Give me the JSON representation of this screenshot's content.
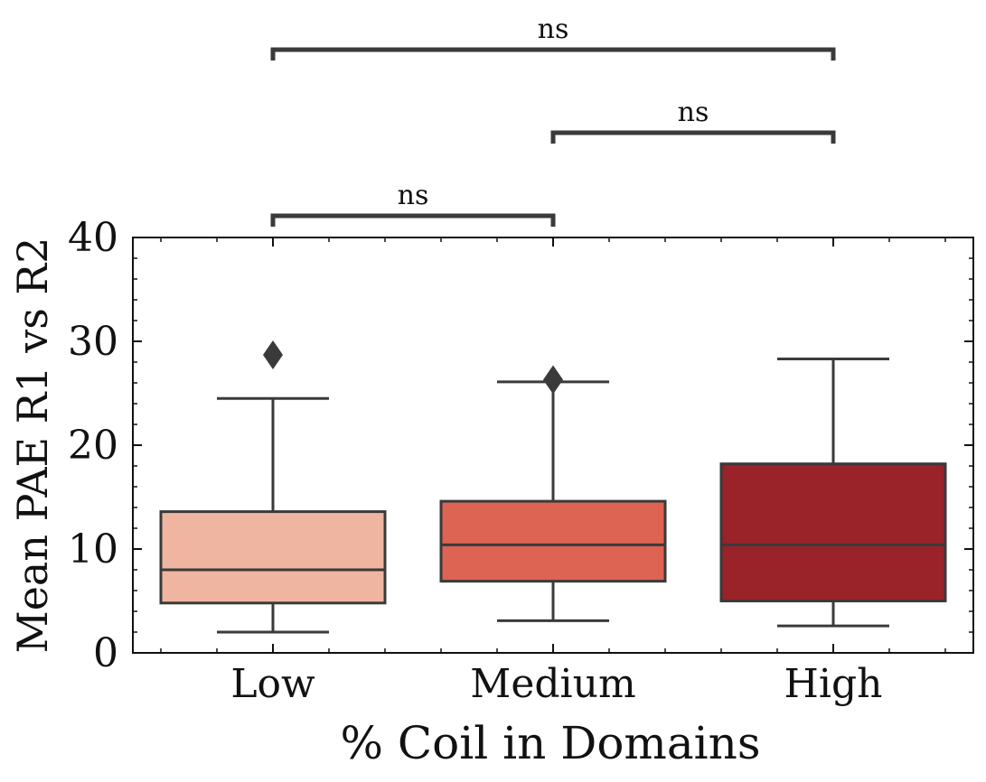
{
  "chart_data": {
    "type": "box",
    "title": "",
    "xlabel": "% Coil in Domains",
    "ylabel": "Mean PAE R1 vs R2",
    "ylim": [
      0,
      40
    ],
    "yticks": [
      0,
      10,
      20,
      30,
      40
    ],
    "categories": [
      "Low",
      "Medium",
      "High"
    ],
    "boxes": [
      {
        "category": "Low",
        "whisker_low": 2.0,
        "q1": 4.8,
        "median": 8.0,
        "q3": 13.6,
        "whisker_high": 24.5,
        "outliers": [
          28.7
        ],
        "color": "#f0b5a1"
      },
      {
        "category": "Medium",
        "whisker_low": 3.1,
        "q1": 6.9,
        "median": 10.4,
        "q3": 14.6,
        "whisker_high": 26.1,
        "outliers": [
          26.3
        ],
        "color": "#dd6352"
      },
      {
        "category": "High",
        "whisker_low": 2.6,
        "q1": 5.0,
        "median": 10.4,
        "q3": 18.2,
        "whisker_high": 28.3,
        "outliers": [],
        "color": "#9a2229"
      }
    ],
    "annotations": [
      {
        "from": "Low",
        "to": "Medium",
        "label": "ns"
      },
      {
        "from": "Medium",
        "to": "High",
        "label": "ns"
      },
      {
        "from": "Low",
        "to": "High",
        "label": "ns"
      }
    ],
    "grid": false,
    "line_color": "#3a3a3a"
  }
}
